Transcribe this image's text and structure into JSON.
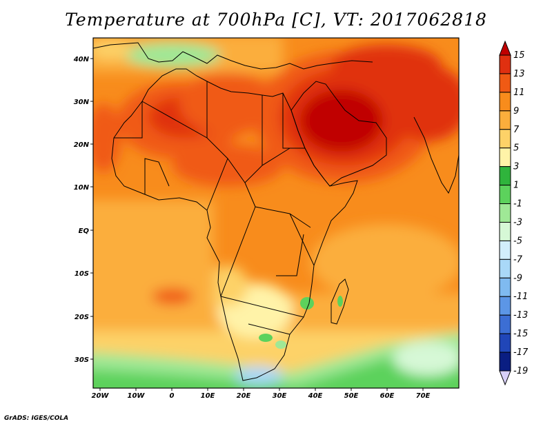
{
  "title": "Temperature at 700hPa [C], VT: 2017062818",
  "footer": "GrADS: IGES/COLA",
  "map": {
    "variable": "Temperature",
    "level": "700hPa",
    "units": "C",
    "valid_time": "2017062818",
    "lon_labels": [
      "20W",
      "10W",
      "0",
      "10E",
      "20E",
      "30E",
      "40E",
      "50E",
      "60E",
      "70E"
    ],
    "lat_labels": [
      "40N",
      "30N",
      "20N",
      "10N",
      "EQ",
      "10S",
      "20S",
      "30S"
    ]
  },
  "colorbar": {
    "labels": [
      "15",
      "13",
      "11",
      "9",
      "7",
      "5",
      "3",
      "1",
      "-1",
      "-3",
      "-5",
      "-7",
      "-9",
      "-11",
      "-13",
      "-15",
      "-17",
      "-19"
    ],
    "colors": [
      "#c00000",
      "#e03010",
      "#f05a14",
      "#f88c1c",
      "#fbae3c",
      "#fdd268",
      "#fff3a8",
      "#2fb43c",
      "#5cd25c",
      "#9fe896",
      "#d6f8d6",
      "#d2eefc",
      "#a9d8f8",
      "#7fbaf0",
      "#5c96e6",
      "#3c6ed4",
      "#2046b8",
      "#0a1e82",
      "#000060"
    ]
  }
}
